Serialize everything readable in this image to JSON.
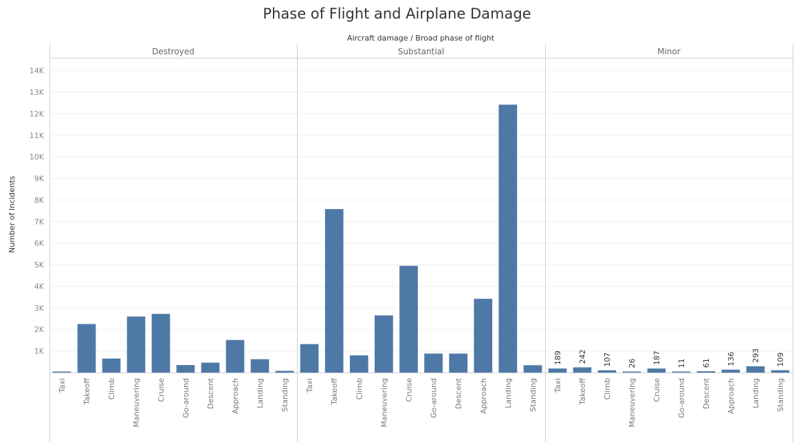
{
  "chart_data": {
    "type": "bar",
    "title": "Phase of Flight and Airplane Damage",
    "header_label": "Aircraft damage  /  Broad phase of flight",
    "ylabel": "Number of Incidents",
    "ylim": [
      0,
      14500
    ],
    "yticks": [
      1000,
      2000,
      3000,
      4000,
      5000,
      6000,
      7000,
      8000,
      9000,
      10000,
      11000,
      12000,
      13000,
      14000
    ],
    "ytick_labels": [
      "1K",
      "2K",
      "3K",
      "4K",
      "5K",
      "6K",
      "7K",
      "8K",
      "9K",
      "10K",
      "11K",
      "12K",
      "13K",
      "14K"
    ],
    "grid": true,
    "bar_color": "#4e79a7",
    "categories": [
      "Taxi",
      "Takeoff",
      "Climb",
      "Maneuvering",
      "Cruise",
      "Go-around",
      "Descent",
      "Approach",
      "Landing",
      "Standing"
    ],
    "panels": [
      {
        "name": "Destroyed",
        "values": [
          40,
          2250,
          650,
          2600,
          2720,
          350,
          460,
          1510,
          620,
          80
        ],
        "show_data_labels": false
      },
      {
        "name": "Substantial",
        "values": [
          1320,
          7580,
          800,
          2650,
          4950,
          880,
          880,
          3420,
          12420,
          340
        ],
        "show_data_labels": false
      },
      {
        "name": "Minor",
        "values": [
          189,
          242,
          107,
          26,
          187,
          11,
          61,
          136,
          293,
          109
        ],
        "data_labels": [
          "189",
          "242",
          "107",
          "26",
          "187",
          "11",
          "61",
          "136",
          "293",
          "109"
        ],
        "show_data_labels": true
      }
    ]
  }
}
